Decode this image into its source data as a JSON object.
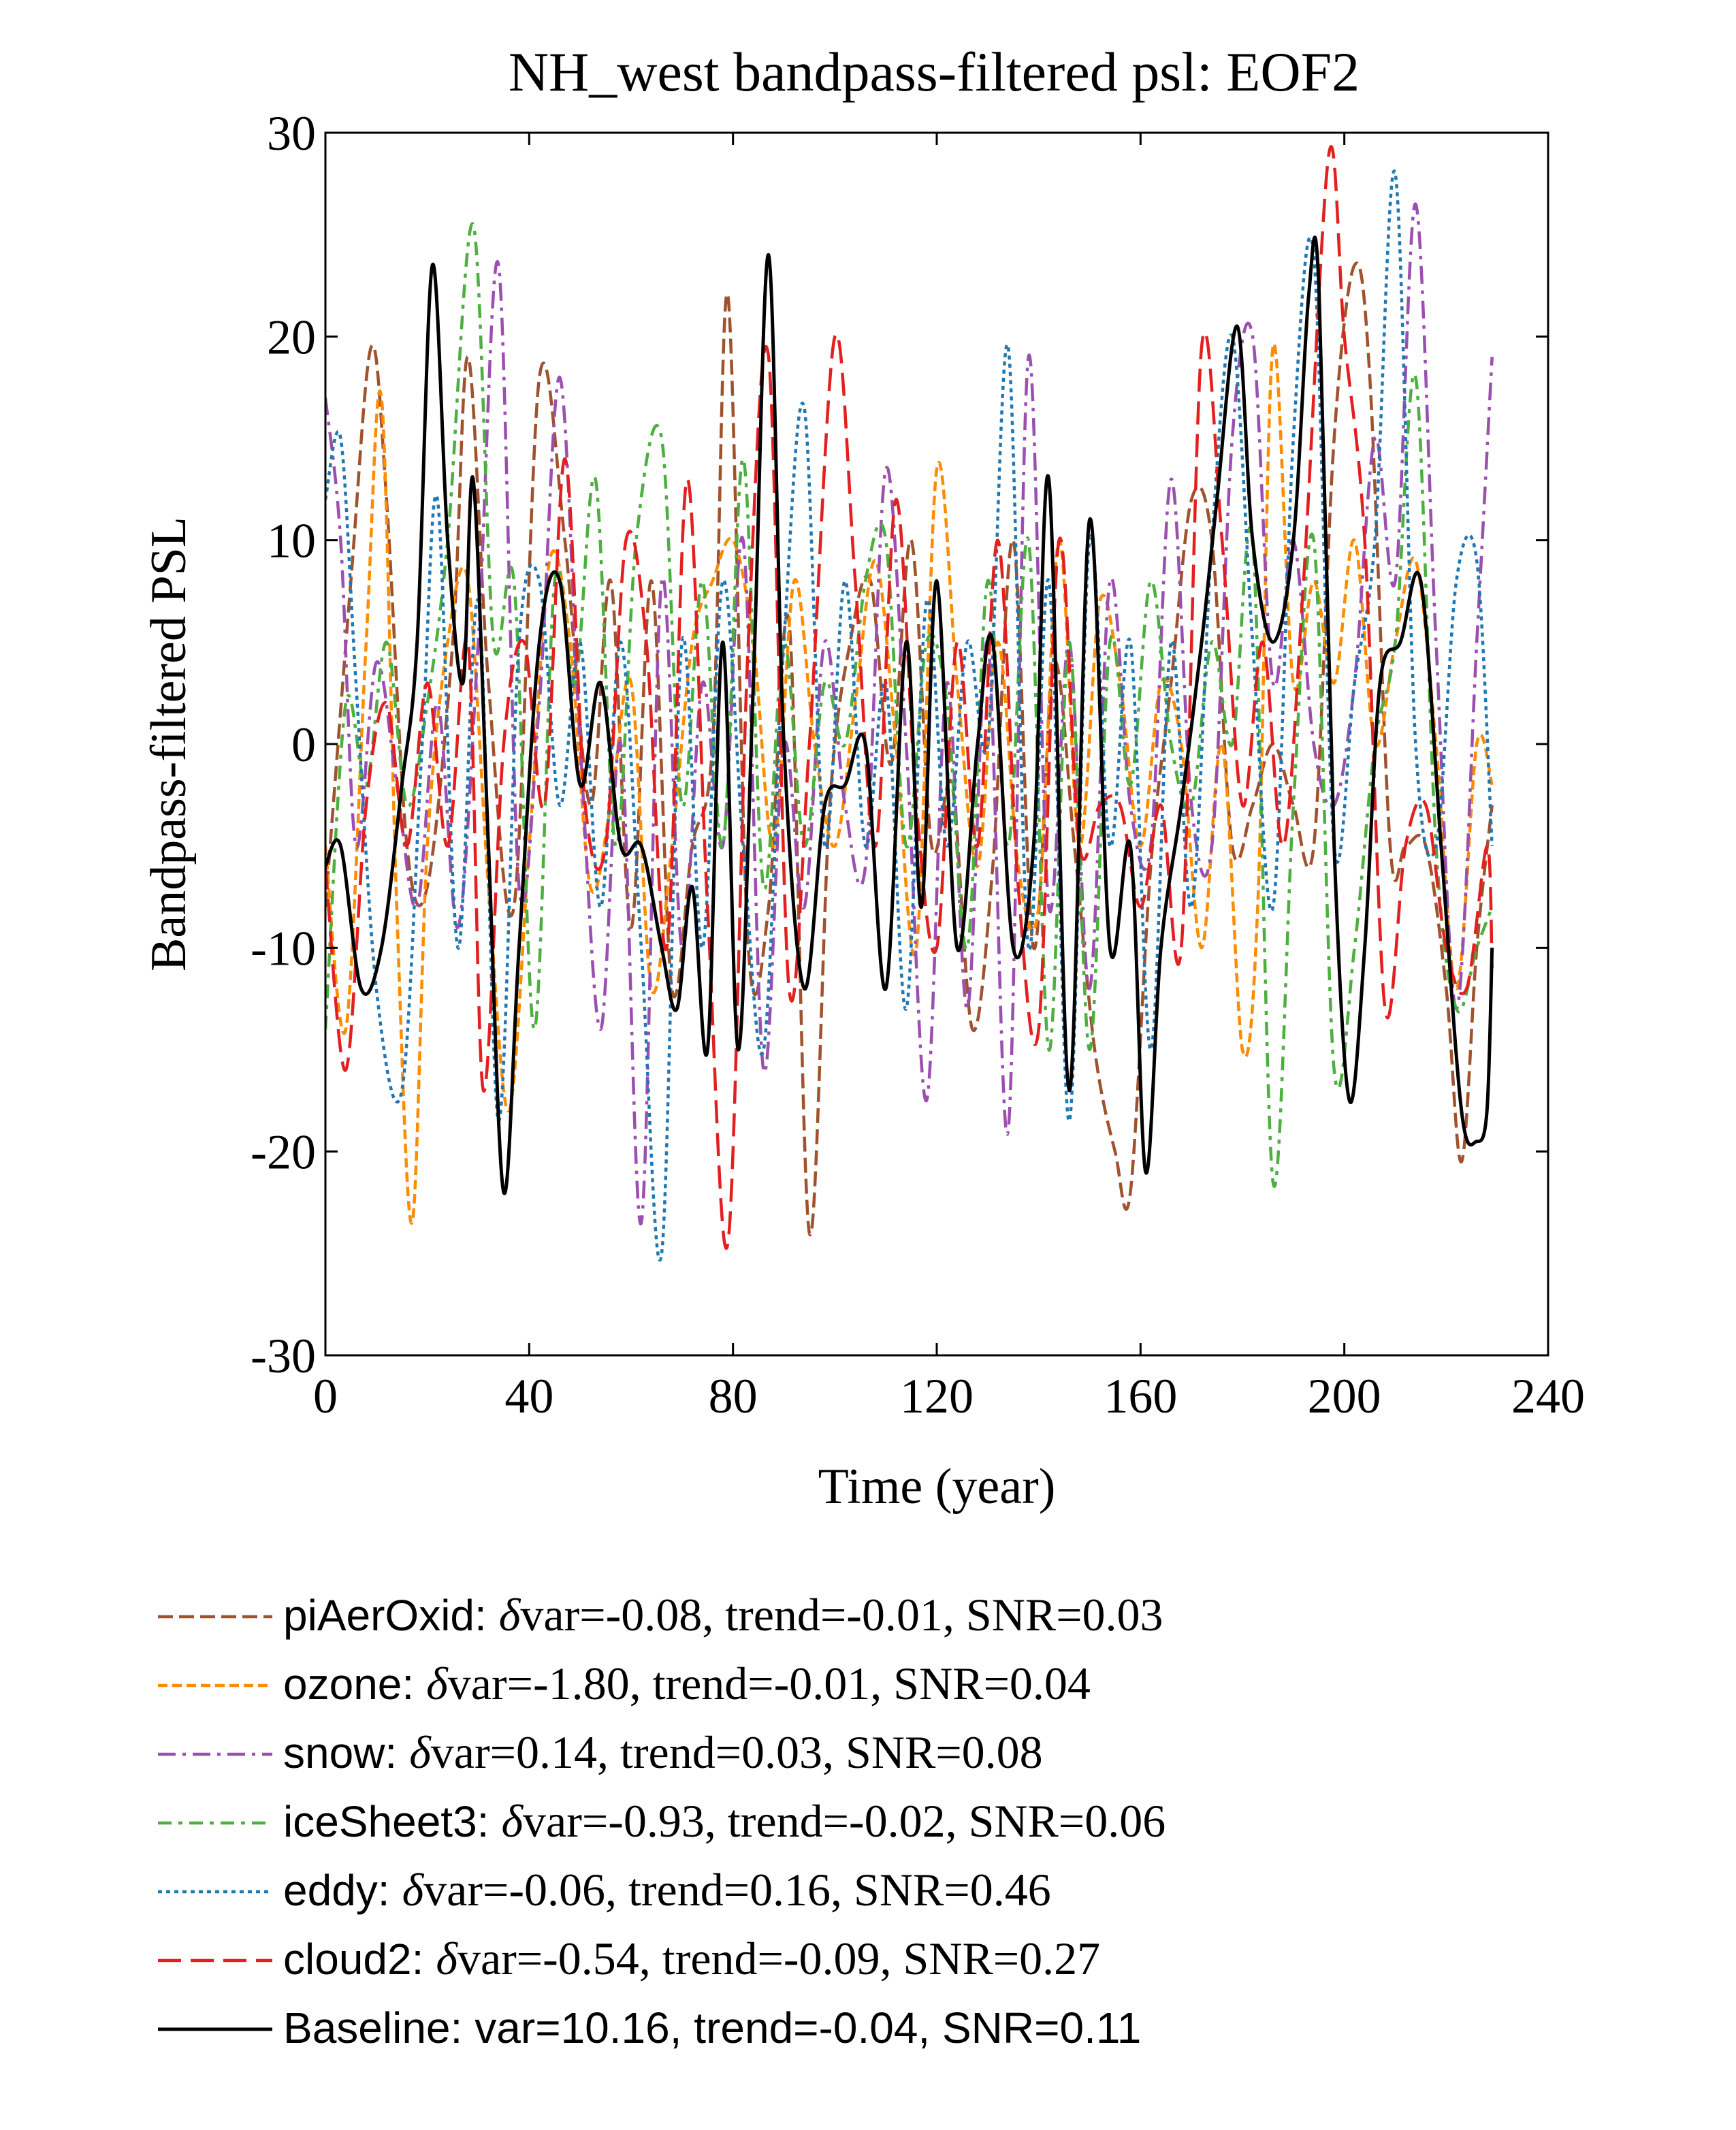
{
  "chart_data": {
    "type": "line",
    "title": "NH_west bandpass-filtered psl: EOF2",
    "xlabel": "Time (year)",
    "ylabel": "Bandpass-filtered PSL",
    "xlim": [
      0,
      240
    ],
    "ylim": [
      -30,
      30
    ],
    "xticks": [
      0,
      40,
      80,
      120,
      160,
      200,
      240
    ],
    "yticks": [
      30,
      20,
      10,
      0,
      -10,
      -20,
      -30
    ],
    "xtick_labels": [
      "0",
      "40",
      "80",
      "120",
      "160",
      "200",
      "240"
    ],
    "ytick_labels": [
      "30",
      "20",
      "10",
      "0",
      "-10",
      "-20",
      "-30"
    ],
    "grid": false,
    "legend_position": "below",
    "series": [
      {
        "name": "piAerOxid",
        "color": "#a0522d",
        "dash": "long-dash",
        "legend": {
          "name": "piAerOxid:",
          "delta": "δ",
          "stats": "var=-0.08, trend=-0.01, SNR=0.03"
        },
        "x": [
          0,
          5,
          9,
          12,
          16,
          20,
          25,
          28,
          32,
          37,
          42,
          47,
          52,
          56,
          60,
          64,
          68,
          72,
          76,
          79,
          83,
          87,
          91,
          95,
          99,
          103,
          107,
          111,
          115,
          119,
          123,
          127,
          131,
          135,
          139,
          143,
          147,
          151,
          155,
          158,
          162,
          166,
          170,
          174,
          178,
          182,
          186,
          190,
          194,
          198,
          202,
          205,
          209,
          212,
          216,
          220,
          223,
          226,
          229
        ],
        "y": [
          -8,
          8,
          19.5,
          12,
          -5,
          -7,
          5,
          19,
          3,
          -8,
          18,
          10,
          -3,
          8,
          -9,
          8,
          -12,
          -5,
          0,
          22,
          -10,
          -8,
          6,
          -24,
          -3,
          5,
          8,
          -1,
          10,
          -5,
          -2,
          -14,
          -6,
          10,
          -10,
          4,
          -5,
          -15,
          -20,
          -22,
          -6,
          3,
          12,
          10,
          -5,
          -3,
          0,
          -3,
          -5,
          15,
          23.5,
          18,
          -5,
          -5,
          -5,
          -12,
          -20.5,
          -10,
          -3
        ]
      },
      {
        "name": "ozone",
        "color": "#ff8c00",
        "dash": "medium-dash",
        "legend": {
          "name": "ozone:",
          "delta": "δ",
          "stats": "var=-1.80, trend=-0.01, SNR=0.04"
        },
        "x": [
          0,
          4,
          8,
          11,
          14,
          17,
          20,
          24,
          28,
          32,
          36,
          40,
          44,
          48,
          52,
          56,
          60,
          64,
          68,
          72,
          76,
          80,
          84,
          88,
          92,
          96,
          100,
          104,
          108,
          112,
          116,
          120,
          124,
          128,
          132,
          136,
          140,
          144,
          148,
          152,
          156,
          160,
          164,
          168,
          172,
          176,
          180,
          183,
          186,
          190,
          194,
          198,
          202,
          206,
          210,
          214,
          218,
          222,
          226,
          229
        ],
        "y": [
          -5,
          -14,
          5,
          17,
          -8,
          -23.5,
          -5,
          5,
          8,
          -7,
          -18,
          -5,
          9,
          5,
          -7,
          -3,
          3,
          -12,
          -5,
          5,
          8,
          10,
          5,
          -5,
          8,
          0,
          -5,
          2,
          9,
          0,
          -10,
          13.5,
          3,
          -6,
          5,
          -6,
          -8,
          10,
          -5,
          7,
          3,
          -5,
          3,
          0,
          -10,
          0,
          -15,
          -8,
          19.5,
          3,
          8,
          3,
          10,
          0,
          5,
          9,
          0,
          -12,
          0,
          -2
        ]
      },
      {
        "name": "snow",
        "color": "#9b4fb0",
        "dash": "dash-dot",
        "legend": {
          "name": "snow:",
          "delta": "δ",
          "stats": "var=0.14, trend=0.03, SNR=0.08"
        },
        "x": [
          0,
          3,
          6,
          10,
          14,
          18,
          22,
          26,
          30,
          34,
          38,
          42,
          46,
          50,
          54,
          58,
          62,
          66,
          70,
          74,
          78,
          82,
          86,
          90,
          94,
          98,
          102,
          106,
          110,
          114,
          118,
          122,
          126,
          130,
          134,
          138,
          142,
          146,
          150,
          154,
          158,
          162,
          166,
          170,
          174,
          178,
          182,
          186,
          190,
          194,
          198,
          202,
          206,
          210,
          214,
          218,
          222,
          226,
          229
        ],
        "y": [
          17,
          10,
          -5,
          4,
          -2,
          -8,
          2,
          -9,
          5,
          23.5,
          -7,
          2,
          18,
          0,
          -14,
          0,
          -23.5,
          8,
          -10,
          3,
          -5,
          10,
          -16,
          0,
          -8,
          5,
          -3,
          -6,
          13.5,
          0,
          -17.5,
          3,
          -13,
          5,
          -19,
          19,
          -8,
          5,
          -12,
          8,
          -3,
          -5,
          13,
          -3,
          -5,
          15,
          20,
          3,
          10,
          0,
          -3,
          3,
          15,
          8,
          26.5,
          5,
          -13,
          5,
          19
        ]
      },
      {
        "name": "iceSheet3",
        "color": "#4caf3f",
        "dash": "dash-dot-long",
        "legend": {
          "name": "iceSheet3:",
          "delta": "δ",
          "stats": "var=-0.93, trend=-0.02, SNR=0.06"
        },
        "x": [
          0,
          4,
          8,
          12,
          16,
          20,
          24,
          29,
          33,
          37,
          41,
          45,
          49,
          53,
          57,
          61,
          66,
          70,
          74,
          78,
          82,
          86,
          90,
          94,
          98,
          102,
          106,
          110,
          114,
          118,
          122,
          126,
          130,
          134,
          138,
          142,
          146,
          150,
          154,
          158,
          162,
          166,
          170,
          174,
          178,
          182,
          186,
          190,
          194,
          198,
          202,
          206,
          210,
          214,
          218,
          222,
          226,
          229
        ],
        "y": [
          -14,
          2,
          -2,
          5,
          -3,
          2,
          10,
          25.5,
          5,
          8,
          -14,
          8,
          3,
          13,
          -5,
          10,
          15,
          -3,
          8,
          -5,
          14,
          -7,
          5,
          -5,
          3,
          0,
          8,
          10,
          -5,
          5,
          2,
          -10,
          8,
          -5,
          10,
          -15,
          5,
          -15,
          5,
          -2,
          8,
          0,
          -3,
          5,
          0,
          10,
          -21.5,
          -3,
          10,
          -16,
          -10,
          0,
          5,
          18,
          -5,
          -13,
          -10,
          -8
        ]
      },
      {
        "name": "eddy",
        "color": "#1f77b4",
        "dash": "dotted",
        "legend": {
          "name": "eddy:",
          "delta": "δ",
          "stats": "var=-0.06, trend=0.16, SNR=0.46"
        },
        "x": [
          0,
          3,
          6,
          10,
          15,
          19,
          22,
          26,
          30,
          34,
          38,
          42,
          46,
          50,
          54,
          58,
          62,
          66,
          70,
          74,
          78,
          82,
          86,
          90,
          94,
          98,
          102,
          106,
          110,
          114,
          118,
          122,
          126,
          130,
          134,
          138,
          142,
          146,
          150,
          154,
          158,
          162,
          166,
          170,
          174,
          178,
          182,
          186,
          190,
          194,
          198,
          202,
          206,
          210,
          214,
          218,
          222,
          226,
          229
        ],
        "y": [
          12,
          15,
          3,
          -12,
          -17,
          0,
          12,
          -10,
          7,
          -18.5,
          5,
          8,
          -3,
          5,
          -8,
          5,
          -10,
          -25,
          5,
          -10,
          8,
          -5,
          -15,
          5,
          16.5,
          -5,
          8,
          -5,
          3,
          -13,
          7,
          -5,
          5,
          0,
          19.5,
          -10,
          8,
          -18.5,
          10,
          -5,
          5,
          -15,
          5,
          -8,
          10,
          20,
          5,
          -8,
          15,
          24,
          -5,
          3,
          10,
          28,
          0,
          -5,
          8,
          9,
          -5
        ]
      },
      {
        "name": "cloud2",
        "color": "#e32020",
        "dash": "long-dash-wide",
        "legend": {
          "name": "cloud2:",
          "delta": "δ",
          "stats": "var=-0.54, trend=-0.09, SNR=0.27"
        },
        "x": [
          0,
          4,
          8,
          12,
          16,
          20,
          24,
          28,
          31,
          35,
          39,
          43,
          47,
          51,
          55,
          59,
          63,
          67,
          71,
          75,
          79,
          83,
          87,
          91,
          95,
          100,
          104,
          108,
          112,
          116,
          120,
          124,
          128,
          132,
          136,
          140,
          144,
          148,
          152,
          156,
          160,
          164,
          168,
          172,
          176,
          180,
          184,
          188,
          192,
          197,
          200,
          204,
          208,
          212,
          216,
          220,
          224,
          228,
          229
        ],
        "y": [
          -6,
          -16,
          -3,
          2,
          -5,
          3,
          -5,
          5,
          -17,
          0,
          5,
          -3,
          14,
          -3,
          -5,
          10,
          5,
          -10,
          13,
          -8,
          -24.5,
          5,
          19,
          -12,
          0,
          20,
          8,
          -5,
          12,
          -3,
          -10,
          5,
          -5,
          10,
          -7,
          -14,
          10,
          -5,
          -3,
          -3,
          -8,
          -3,
          -10,
          19.5,
          10,
          -3,
          5,
          -5,
          8,
          29,
          20,
          10,
          -13,
          -5,
          -3,
          -10,
          -12,
          -5,
          -11
        ]
      },
      {
        "name": "Baseline",
        "color": "#000000",
        "dash": "solid",
        "legend": {
          "name": "Baseline:",
          "delta": "",
          "stats": "var=10.16, trend=-0.04, SNR=0.11"
        },
        "x": [
          0,
          3,
          7,
          11,
          15,
          18,
          21,
          24,
          27,
          29,
          32,
          35,
          38,
          42,
          46,
          50,
          54,
          58,
          62,
          66,
          69,
          72,
          75,
          78,
          81,
          84,
          87,
          90,
          94,
          98,
          102,
          106,
          110,
          114,
          117,
          120,
          124,
          128,
          131,
          135,
          139,
          142,
          146,
          150,
          154,
          158,
          161,
          164,
          168,
          172,
          175,
          179,
          182,
          186,
          190,
          193,
          195,
          198,
          201,
          204,
          207,
          211,
          215,
          219,
          223,
          226,
          228,
          229
        ],
        "y": [
          -6,
          -5,
          -12,
          -10,
          -2,
          5,
          23.5,
          10,
          3,
          13,
          -5,
          -22,
          -10,
          5,
          8,
          -2,
          3,
          -5,
          -5,
          -10,
          -13,
          -7,
          -15,
          5,
          -15,
          3,
          24,
          0,
          -12,
          -3,
          -2,
          0,
          -12,
          5,
          -8,
          8,
          -10,
          0,
          5,
          -10,
          -5,
          13,
          -17,
          11,
          -10,
          -5,
          -21,
          -10,
          -3,
          5,
          12,
          20.5,
          10,
          5,
          10,
          22,
          22.5,
          -5,
          -17.5,
          -10,
          3,
          5,
          8,
          -5,
          -18,
          -19.5,
          -18,
          -10
        ]
      }
    ]
  }
}
